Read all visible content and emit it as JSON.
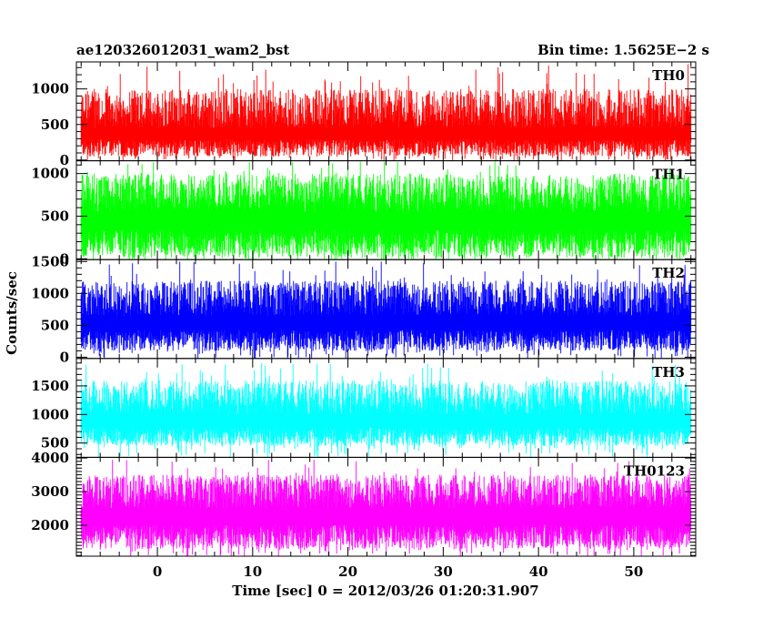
{
  "header": {
    "title": "ae120326012031_wam2_bst",
    "bin_time": "Bin time: 1.5625E−2 s"
  },
  "ylabel": "Counts/sec",
  "xlabel": "Time [sec] 0 = 2012/03/26 01:20:31.907",
  "chart_data": {
    "type": "line",
    "title": "ae120326012031_wam2_bst",
    "subtitle": "Bin time: 1.5625E−2 s",
    "xlabel": "Time [sec] 0 = 2012/03/26 01:20:31.907",
    "ylabel": "Counts/sec",
    "xlim": [
      -8.5,
      56.5
    ],
    "data_xrange": [
      -8,
      56
    ],
    "xticks": [
      0,
      10,
      20,
      30,
      40,
      50
    ],
    "xticklabels": [
      "0",
      "10",
      "20",
      "30",
      "40",
      "50"
    ],
    "grid": false,
    "panels": [
      {
        "name": "TH0",
        "color": "#ff0000",
        "ylim": [
          -10,
          1380
        ],
        "yticks": [
          0,
          500,
          1000
        ],
        "yticklabels": [
          "0",
          "500",
          "1000"
        ],
        "typical_range": [
          50,
          1000
        ],
        "mean": 450,
        "peak_max": 1350
      },
      {
        "name": "TH1",
        "color": "#00ff00",
        "ylim": [
          -10,
          1150
        ],
        "yticks": [
          0,
          500,
          1000
        ],
        "yticklabels": [
          "0",
          "500",
          "1000"
        ],
        "typical_range": [
          20,
          1000
        ],
        "mean": 550,
        "peak_max": 1150
      },
      {
        "name": "TH2",
        "color": "#0000ff",
        "ylim": [
          -20,
          1530
        ],
        "yticks": [
          0,
          500,
          1000,
          1500
        ],
        "yticklabels": [
          "0",
          "500",
          "1000",
          "1500"
        ],
        "typical_range": [
          100,
          1200
        ],
        "mean": 650,
        "peak_max": 1500
      },
      {
        "name": "TH3",
        "color": "#00ffff",
        "ylim": [
          250,
          1980
        ],
        "yticks": [
          500,
          1000,
          1500
        ],
        "yticklabels": [
          "500",
          "1000",
          "1500"
        ],
        "typical_range": [
          450,
          1600
        ],
        "mean": 1000,
        "peak_max": 1900
      },
      {
        "name": "TH0123",
        "color": "#ff00ff",
        "ylim": [
          1080,
          4020
        ],
        "yticks": [
          2000,
          3000,
          4000
        ],
        "yticklabels": [
          "2000",
          "3000",
          "4000"
        ],
        "typical_range": [
          1300,
          3500
        ],
        "mean": 2500,
        "peak_max": 3950
      }
    ]
  }
}
